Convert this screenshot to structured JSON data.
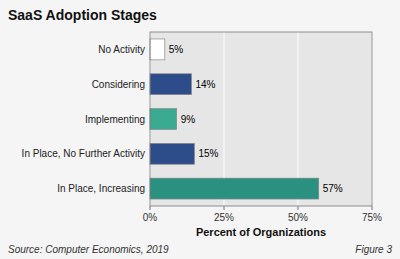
{
  "chart_data": {
    "type": "bar",
    "orientation": "horizontal",
    "title": "SaaS Adoption Stages",
    "categories": [
      "In Place, Increasing",
      "In Place, No Further Activity",
      "Implementing",
      "Considering",
      "No Activity"
    ],
    "values": [
      57,
      15,
      9,
      14,
      5
    ],
    "value_labels": [
      "57%",
      "15%",
      "9%",
      "14%",
      "5%"
    ],
    "data_labels": true,
    "colors": [
      "#2a9080",
      "#2d4d8a",
      "#3aaa90",
      "#2d4d8a",
      "#ffffff"
    ],
    "xlabel": "Percent of Organizations",
    "xlim": [
      0,
      75
    ],
    "xticks": [
      {
        "value": 0,
        "label": "0%"
      },
      {
        "value": 25,
        "label": "25%"
      },
      {
        "value": 50,
        "label": "50%"
      },
      {
        "value": 75,
        "label": "75%"
      }
    ],
    "grid": true,
    "annotations": [
      "Source: Computer Economics, 2019",
      "Figure 3"
    ]
  }
}
